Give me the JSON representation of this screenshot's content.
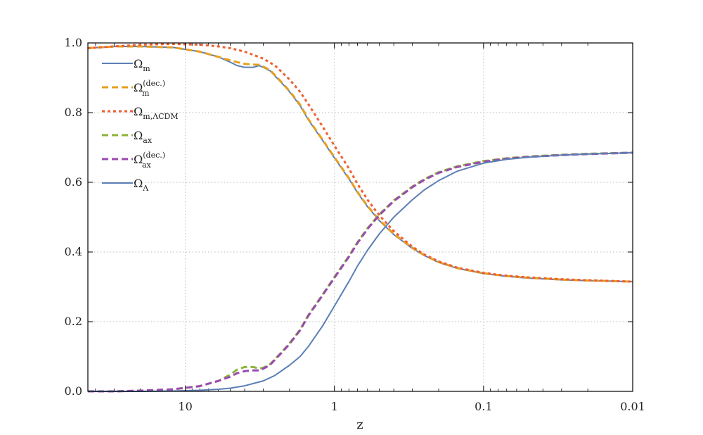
{
  "chart_data": {
    "type": "line",
    "xlabel": "z",
    "ylabel": "",
    "x_scale": "log",
    "x_reversed": true,
    "xlim": [
      45,
      0.01
    ],
    "ylim": [
      0.0,
      1.0
    ],
    "grid": true,
    "legend_position": "top-left",
    "x_ticks": [
      {
        "value": 10,
        "label": "10"
      },
      {
        "value": 1,
        "label": "1"
      },
      {
        "value": 0.1,
        "label": "0.1"
      },
      {
        "value": 0.01,
        "label": "0.01"
      }
    ],
    "y_ticks": [
      {
        "value": 0.0,
        "label": "0.0"
      },
      {
        "value": 0.2,
        "label": "0.2"
      },
      {
        "value": 0.4,
        "label": "0.4"
      },
      {
        "value": 0.6,
        "label": "0.6"
      },
      {
        "value": 0.8,
        "label": "0.8"
      },
      {
        "value": 1.0,
        "label": "1.0"
      }
    ],
    "series": [
      {
        "name": "Ω_m",
        "legend": {
          "base": "Ω",
          "sub": "m",
          "sup": ""
        },
        "color": "#5b7fb5",
        "style": "solid",
        "x": [
          45,
          30,
          20,
          12,
          8,
          6,
          5,
          4.5,
          4,
          3.5,
          3.2,
          3,
          2.7,
          2.5,
          2.2,
          2,
          1.7,
          1.5,
          1.2,
          1,
          0.8,
          0.7,
          0.6,
          0.5,
          0.4,
          0.3,
          0.25,
          0.2,
          0.15,
          0.1,
          0.07,
          0.05,
          0.03,
          0.02,
          0.01
        ],
        "y": [
          0.985,
          0.99,
          0.99,
          0.987,
          0.975,
          0.96,
          0.945,
          0.935,
          0.93,
          0.93,
          0.935,
          0.93,
          0.92,
          0.905,
          0.88,
          0.86,
          0.82,
          0.78,
          0.72,
          0.67,
          0.61,
          0.57,
          0.53,
          0.49,
          0.45,
          0.41,
          0.39,
          0.37,
          0.353,
          0.338,
          0.33,
          0.325,
          0.32,
          0.318,
          0.315
        ]
      },
      {
        "name": "Ω_m^(dec.)",
        "legend": {
          "base": "Ω",
          "sub": "m",
          "sup": "(dec.)"
        },
        "color": "#e69f1e",
        "style": "dashed",
        "x": [
          45,
          30,
          20,
          12,
          8,
          6,
          5,
          4.5,
          4,
          3.5,
          3.2,
          3,
          2.7,
          2.5,
          2.2,
          2,
          1.7,
          1.5,
          1.2,
          1,
          0.8,
          0.7,
          0.6,
          0.5,
          0.4,
          0.3,
          0.25,
          0.2,
          0.15,
          0.1,
          0.07,
          0.05,
          0.03,
          0.02,
          0.01
        ],
        "y": [
          0.985,
          0.99,
          0.99,
          0.987,
          0.975,
          0.96,
          0.95,
          0.945,
          0.94,
          0.938,
          0.937,
          0.932,
          0.922,
          0.907,
          0.882,
          0.862,
          0.823,
          0.782,
          0.722,
          0.672,
          0.612,
          0.572,
          0.532,
          0.492,
          0.452,
          0.412,
          0.391,
          0.371,
          0.354,
          0.339,
          0.331,
          0.326,
          0.321,
          0.318,
          0.315
        ]
      },
      {
        "name": "Ω_m,ΛCDM",
        "legend": {
          "base": "Ω",
          "sub": "m,ΛCDM",
          "sup": ""
        },
        "color": "#ef5f33",
        "style": "dotted",
        "x": [
          45,
          30,
          20,
          12,
          8,
          6,
          5,
          4,
          3,
          2.5,
          2,
          1.7,
          1.5,
          1.2,
          1,
          0.8,
          0.7,
          0.6,
          0.5,
          0.4,
          0.3,
          0.25,
          0.2,
          0.15,
          0.1,
          0.07,
          0.05,
          0.03,
          0.02,
          0.01
        ],
        "y": [
          0.985,
          0.99,
          0.995,
          0.997,
          0.995,
          0.99,
          0.985,
          0.975,
          0.955,
          0.935,
          0.895,
          0.86,
          0.825,
          0.76,
          0.705,
          0.64,
          0.595,
          0.55,
          0.505,
          0.46,
          0.415,
          0.393,
          0.373,
          0.355,
          0.34,
          0.332,
          0.327,
          0.322,
          0.319,
          0.315
        ]
      },
      {
        "name": "Ω_ax",
        "legend": {
          "base": "Ω",
          "sub": "ax",
          "sup": ""
        },
        "color": "#8db33a",
        "style": "dashed",
        "x": [
          45,
          30,
          20,
          12,
          8,
          6,
          5,
          4.5,
          4,
          3.5,
          3.2,
          3,
          2.7,
          2.5,
          2.2,
          2,
          1.7,
          1.5,
          1.2,
          1,
          0.8,
          0.7,
          0.6,
          0.5,
          0.4,
          0.3,
          0.25,
          0.2,
          0.15,
          0.1,
          0.07,
          0.05,
          0.03,
          0.02,
          0.01
        ],
        "y": [
          0.0,
          0.0,
          0.002,
          0.006,
          0.015,
          0.03,
          0.048,
          0.062,
          0.07,
          0.07,
          0.065,
          0.068,
          0.078,
          0.093,
          0.118,
          0.138,
          0.177,
          0.218,
          0.278,
          0.328,
          0.388,
          0.428,
          0.468,
          0.508,
          0.548,
          0.588,
          0.609,
          0.629,
          0.646,
          0.661,
          0.669,
          0.674,
          0.679,
          0.682,
          0.685
        ]
      },
      {
        "name": "Ω_ax^(dec.)",
        "legend": {
          "base": "Ω",
          "sub": "ax",
          "sup": "(dec.)"
        },
        "color": "#9a4ab0",
        "style": "dashed",
        "x": [
          45,
          30,
          20,
          12,
          8,
          6,
          5,
          4.5,
          4,
          3.5,
          3.2,
          3,
          2.7,
          2.5,
          2.2,
          2,
          1.7,
          1.5,
          1.2,
          1,
          0.8,
          0.7,
          0.6,
          0.5,
          0.4,
          0.3,
          0.25,
          0.2,
          0.15,
          0.1,
          0.07,
          0.05,
          0.03,
          0.02,
          0.01
        ],
        "y": [
          0.0,
          0.0,
          0.002,
          0.006,
          0.015,
          0.03,
          0.042,
          0.052,
          0.058,
          0.06,
          0.06,
          0.065,
          0.076,
          0.091,
          0.116,
          0.136,
          0.175,
          0.216,
          0.276,
          0.326,
          0.386,
          0.426,
          0.466,
          0.506,
          0.546,
          0.586,
          0.607,
          0.627,
          0.644,
          0.659,
          0.668,
          0.673,
          0.678,
          0.681,
          0.685
        ]
      },
      {
        "name": "Ω_Λ",
        "legend": {
          "base": "Ω",
          "sub": "Λ",
          "sup": ""
        },
        "color": "#5b7fb5",
        "style": "solid",
        "x": [
          45,
          30,
          20,
          12,
          8,
          6,
          5,
          4,
          3,
          2.5,
          2,
          1.7,
          1.5,
          1.2,
          1,
          0.8,
          0.7,
          0.6,
          0.5,
          0.4,
          0.3,
          0.25,
          0.2,
          0.15,
          0.1,
          0.07,
          0.05,
          0.03,
          0.02,
          0.01
        ],
        "y": [
          0.0,
          0.0,
          0.0,
          0.001,
          0.003,
          0.006,
          0.009,
          0.016,
          0.03,
          0.046,
          0.075,
          0.1,
          0.128,
          0.188,
          0.245,
          0.315,
          0.36,
          0.405,
          0.452,
          0.5,
          0.55,
          0.578,
          0.605,
          0.632,
          0.655,
          0.666,
          0.672,
          0.678,
          0.681,
          0.685
        ]
      }
    ]
  }
}
